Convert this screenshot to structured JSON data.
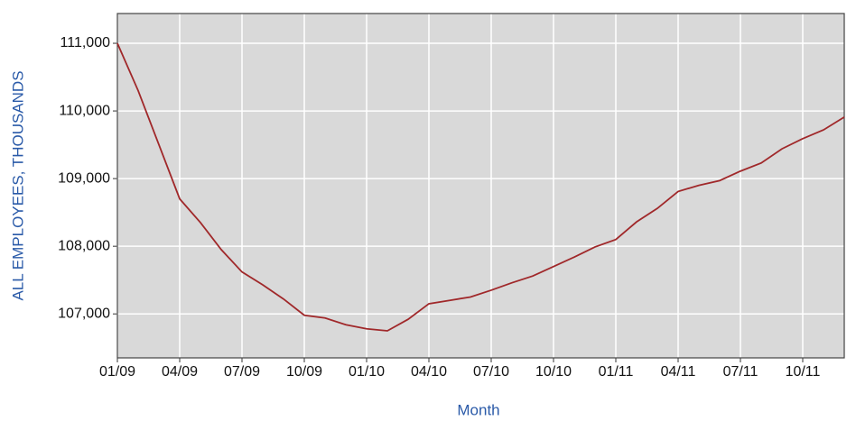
{
  "chart_data": {
    "type": "line",
    "xlabel": "Month",
    "ylabel": "ALL EMPLOYEES, THOUSANDS",
    "categories": [
      "01/09",
      null,
      null,
      "04/09",
      null,
      null,
      "07/09",
      null,
      null,
      "10/09",
      null,
      null,
      "01/10",
      null,
      null,
      "04/10",
      null,
      null,
      "07/10",
      null,
      null,
      "10/10",
      null,
      null,
      "01/11",
      null,
      null,
      "04/11",
      null,
      null,
      "07/11",
      null,
      null,
      "10/11",
      null,
      null
    ],
    "series": [
      {
        "color": "#a0282a",
        "values": [
          111000,
          110300,
          109500,
          108700,
          108350,
          107950,
          107620,
          107430,
          107220,
          106980,
          106940,
          106840,
          106780,
          106750,
          106920,
          107150,
          107200,
          107250,
          107350,
          107460,
          107560,
          107700,
          107840,
          107990,
          108100,
          108360,
          108560,
          108810,
          108900,
          108970,
          109110,
          109230,
          109440,
          109590,
          109720,
          109910
        ]
      }
    ],
    "ylim": [
      106350,
      111440
    ],
    "yticks": [
      {
        "value": 107000,
        "label": "107,000"
      },
      {
        "value": 108000,
        "label": "108,000"
      },
      {
        "value": 109000,
        "label": "109,000"
      },
      {
        "value": 110000,
        "label": "110,000"
      },
      {
        "value": 111000,
        "label": "111,000"
      }
    ],
    "grid": true,
    "background": "#d9d9d9"
  }
}
